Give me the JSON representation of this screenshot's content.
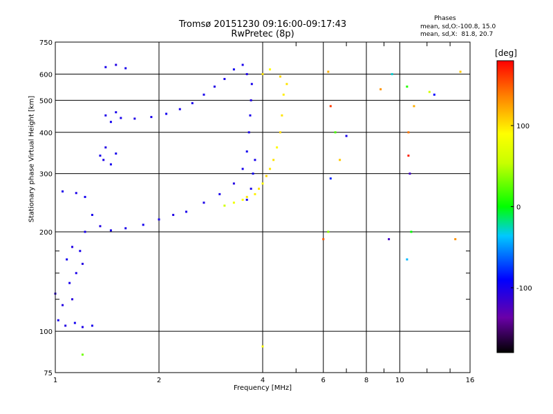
{
  "title": "Tromsø 20151230 09:16:00-09:17:43",
  "subtitle": "RwPretec (8p)",
  "phases": {
    "title": "Phases",
    "o_line": "mean, sd,O:-100.8, 15.0",
    "x_line": "mean, sd,X:  81.8, 20.7"
  },
  "chart_data": {
    "type": "scatter",
    "xlabel": "Frequency [MHz]",
    "ylabel": "Stationary phase Virtual Height [km]",
    "x_scale": "log",
    "y_scale": "log",
    "xlim": [
      1,
      16
    ],
    "ylim": [
      75,
      750
    ],
    "x_ticks": [
      1,
      2,
      4,
      6,
      8,
      10,
      16
    ],
    "x_tick_labels": [
      "1",
      "2",
      "4",
      "6",
      "8",
      "10",
      "16"
    ],
    "y_ticks": [
      75,
      100,
      200,
      300,
      400,
      500,
      600,
      750
    ],
    "y_tick_labels": [
      "75",
      "100",
      "200",
      "300",
      "400",
      "500",
      "600",
      "750"
    ],
    "grid": true,
    "colorbar": {
      "label": "[deg]",
      "min": -180,
      "max": 180,
      "ticks": [
        -100,
        0,
        100
      ],
      "tick_labels": [
        "-100",
        "0",
        "100"
      ]
    },
    "series": [
      {
        "mode": "O",
        "points": [
          [
            1.0,
            130,
            -110
          ],
          [
            1.05,
            120,
            -105
          ],
          [
            1.1,
            140,
            -100
          ],
          [
            1.12,
            125,
            -108
          ],
          [
            1.15,
            150,
            -102
          ],
          [
            1.08,
            165,
            -98
          ],
          [
            1.12,
            180,
            -104
          ],
          [
            1.18,
            175,
            -100
          ],
          [
            1.2,
            160,
            -106
          ],
          [
            1.22,
            200,
            -100
          ],
          [
            1.02,
            108,
            -100
          ],
          [
            1.07,
            104,
            -105
          ],
          [
            1.14,
            106,
            -98
          ],
          [
            1.2,
            103,
            -103
          ],
          [
            1.28,
            104,
            -100
          ],
          [
            1.05,
            265,
            -100
          ],
          [
            1.15,
            262,
            -102
          ],
          [
            1.22,
            255,
            -98
          ],
          [
            1.28,
            225,
            -100
          ],
          [
            1.35,
            208,
            -105
          ],
          [
            1.45,
            202,
            -100
          ],
          [
            1.6,
            205,
            -102
          ],
          [
            1.8,
            210,
            -98
          ],
          [
            2.0,
            218,
            -100
          ],
          [
            2.2,
            225,
            -104
          ],
          [
            2.4,
            230,
            -100
          ],
          [
            2.7,
            245,
            -102
          ],
          [
            3.0,
            260,
            -100
          ],
          [
            3.3,
            280,
            -105
          ],
          [
            3.5,
            310,
            -100
          ],
          [
            3.6,
            350,
            -98
          ],
          [
            3.65,
            400,
            -102
          ],
          [
            3.68,
            450,
            -100
          ],
          [
            3.7,
            500,
            -104
          ],
          [
            3.72,
            560,
            -100
          ],
          [
            3.6,
            600,
            -102
          ],
          [
            3.5,
            640,
            -100
          ],
          [
            3.3,
            620,
            -98
          ],
          [
            3.1,
            580,
            -100
          ],
          [
            2.9,
            550,
            -104
          ],
          [
            2.7,
            520,
            -100
          ],
          [
            2.5,
            490,
            -102
          ],
          [
            2.3,
            470,
            -100
          ],
          [
            2.1,
            455,
            -98
          ],
          [
            1.9,
            445,
            -100
          ],
          [
            1.7,
            440,
            -103
          ],
          [
            1.55,
            442,
            -100
          ],
          [
            1.45,
            430,
            -98
          ],
          [
            1.4,
            450,
            -102
          ],
          [
            1.5,
            460,
            -100
          ],
          [
            1.35,
            340,
            -100
          ],
          [
            1.4,
            360,
            -104
          ],
          [
            1.5,
            345,
            -100
          ],
          [
            1.45,
            320,
            -98
          ],
          [
            1.38,
            330,
            -102
          ],
          [
            1.4,
            630,
            -100
          ],
          [
            1.5,
            640,
            -104
          ],
          [
            1.6,
            625,
            -100
          ],
          [
            3.6,
            250,
            -100
          ],
          [
            3.7,
            270,
            -102
          ],
          [
            3.75,
            300,
            -98
          ],
          [
            3.8,
            330,
            -100
          ]
        ]
      },
      {
        "mode": "X",
        "points": [
          [
            3.8,
            260,
            95
          ],
          [
            3.9,
            270,
            100
          ],
          [
            4.0,
            280,
            90
          ],
          [
            4.1,
            295,
            105
          ],
          [
            4.2,
            310,
            98
          ],
          [
            4.3,
            330,
            100
          ],
          [
            4.4,
            360,
            92
          ],
          [
            4.5,
            400,
            104
          ],
          [
            4.55,
            450,
            100
          ],
          [
            4.6,
            520,
            96
          ],
          [
            4.7,
            560,
            100
          ],
          [
            3.5,
            250,
            88
          ],
          [
            3.6,
            255,
            100
          ],
          [
            3.3,
            245,
            80
          ],
          [
            3.1,
            240,
            60
          ],
          [
            4.0,
            600,
            100
          ],
          [
            4.2,
            620,
            90
          ],
          [
            4.5,
            590,
            105
          ]
        ]
      },
      {
        "mode": "scattered",
        "points": [
          [
            6.2,
            610,
            120
          ],
          [
            6.3,
            480,
            160
          ],
          [
            6.5,
            400,
            20
          ],
          [
            6.7,
            330,
            110
          ],
          [
            7.0,
            390,
            -100
          ],
          [
            6.2,
            200,
            40
          ],
          [
            6.3,
            290,
            -80
          ],
          [
            6.0,
            190,
            150
          ],
          [
            8.8,
            540,
            130
          ],
          [
            9.3,
            190,
            -120
          ],
          [
            9.5,
            600,
            -30
          ],
          [
            10.5,
            550,
            10
          ],
          [
            10.6,
            400,
            140
          ],
          [
            10.6,
            340,
            170
          ],
          [
            10.7,
            300,
            -120
          ],
          [
            10.8,
            200,
            0
          ],
          [
            10.5,
            165,
            -40
          ],
          [
            11.0,
            480,
            120
          ],
          [
            12.2,
            530,
            60
          ],
          [
            12.6,
            520,
            -90
          ],
          [
            14.5,
            190,
            130
          ],
          [
            15.0,
            610,
            110
          ],
          [
            4.0,
            90,
            90
          ],
          [
            1.2,
            85,
            30
          ]
        ]
      }
    ]
  }
}
